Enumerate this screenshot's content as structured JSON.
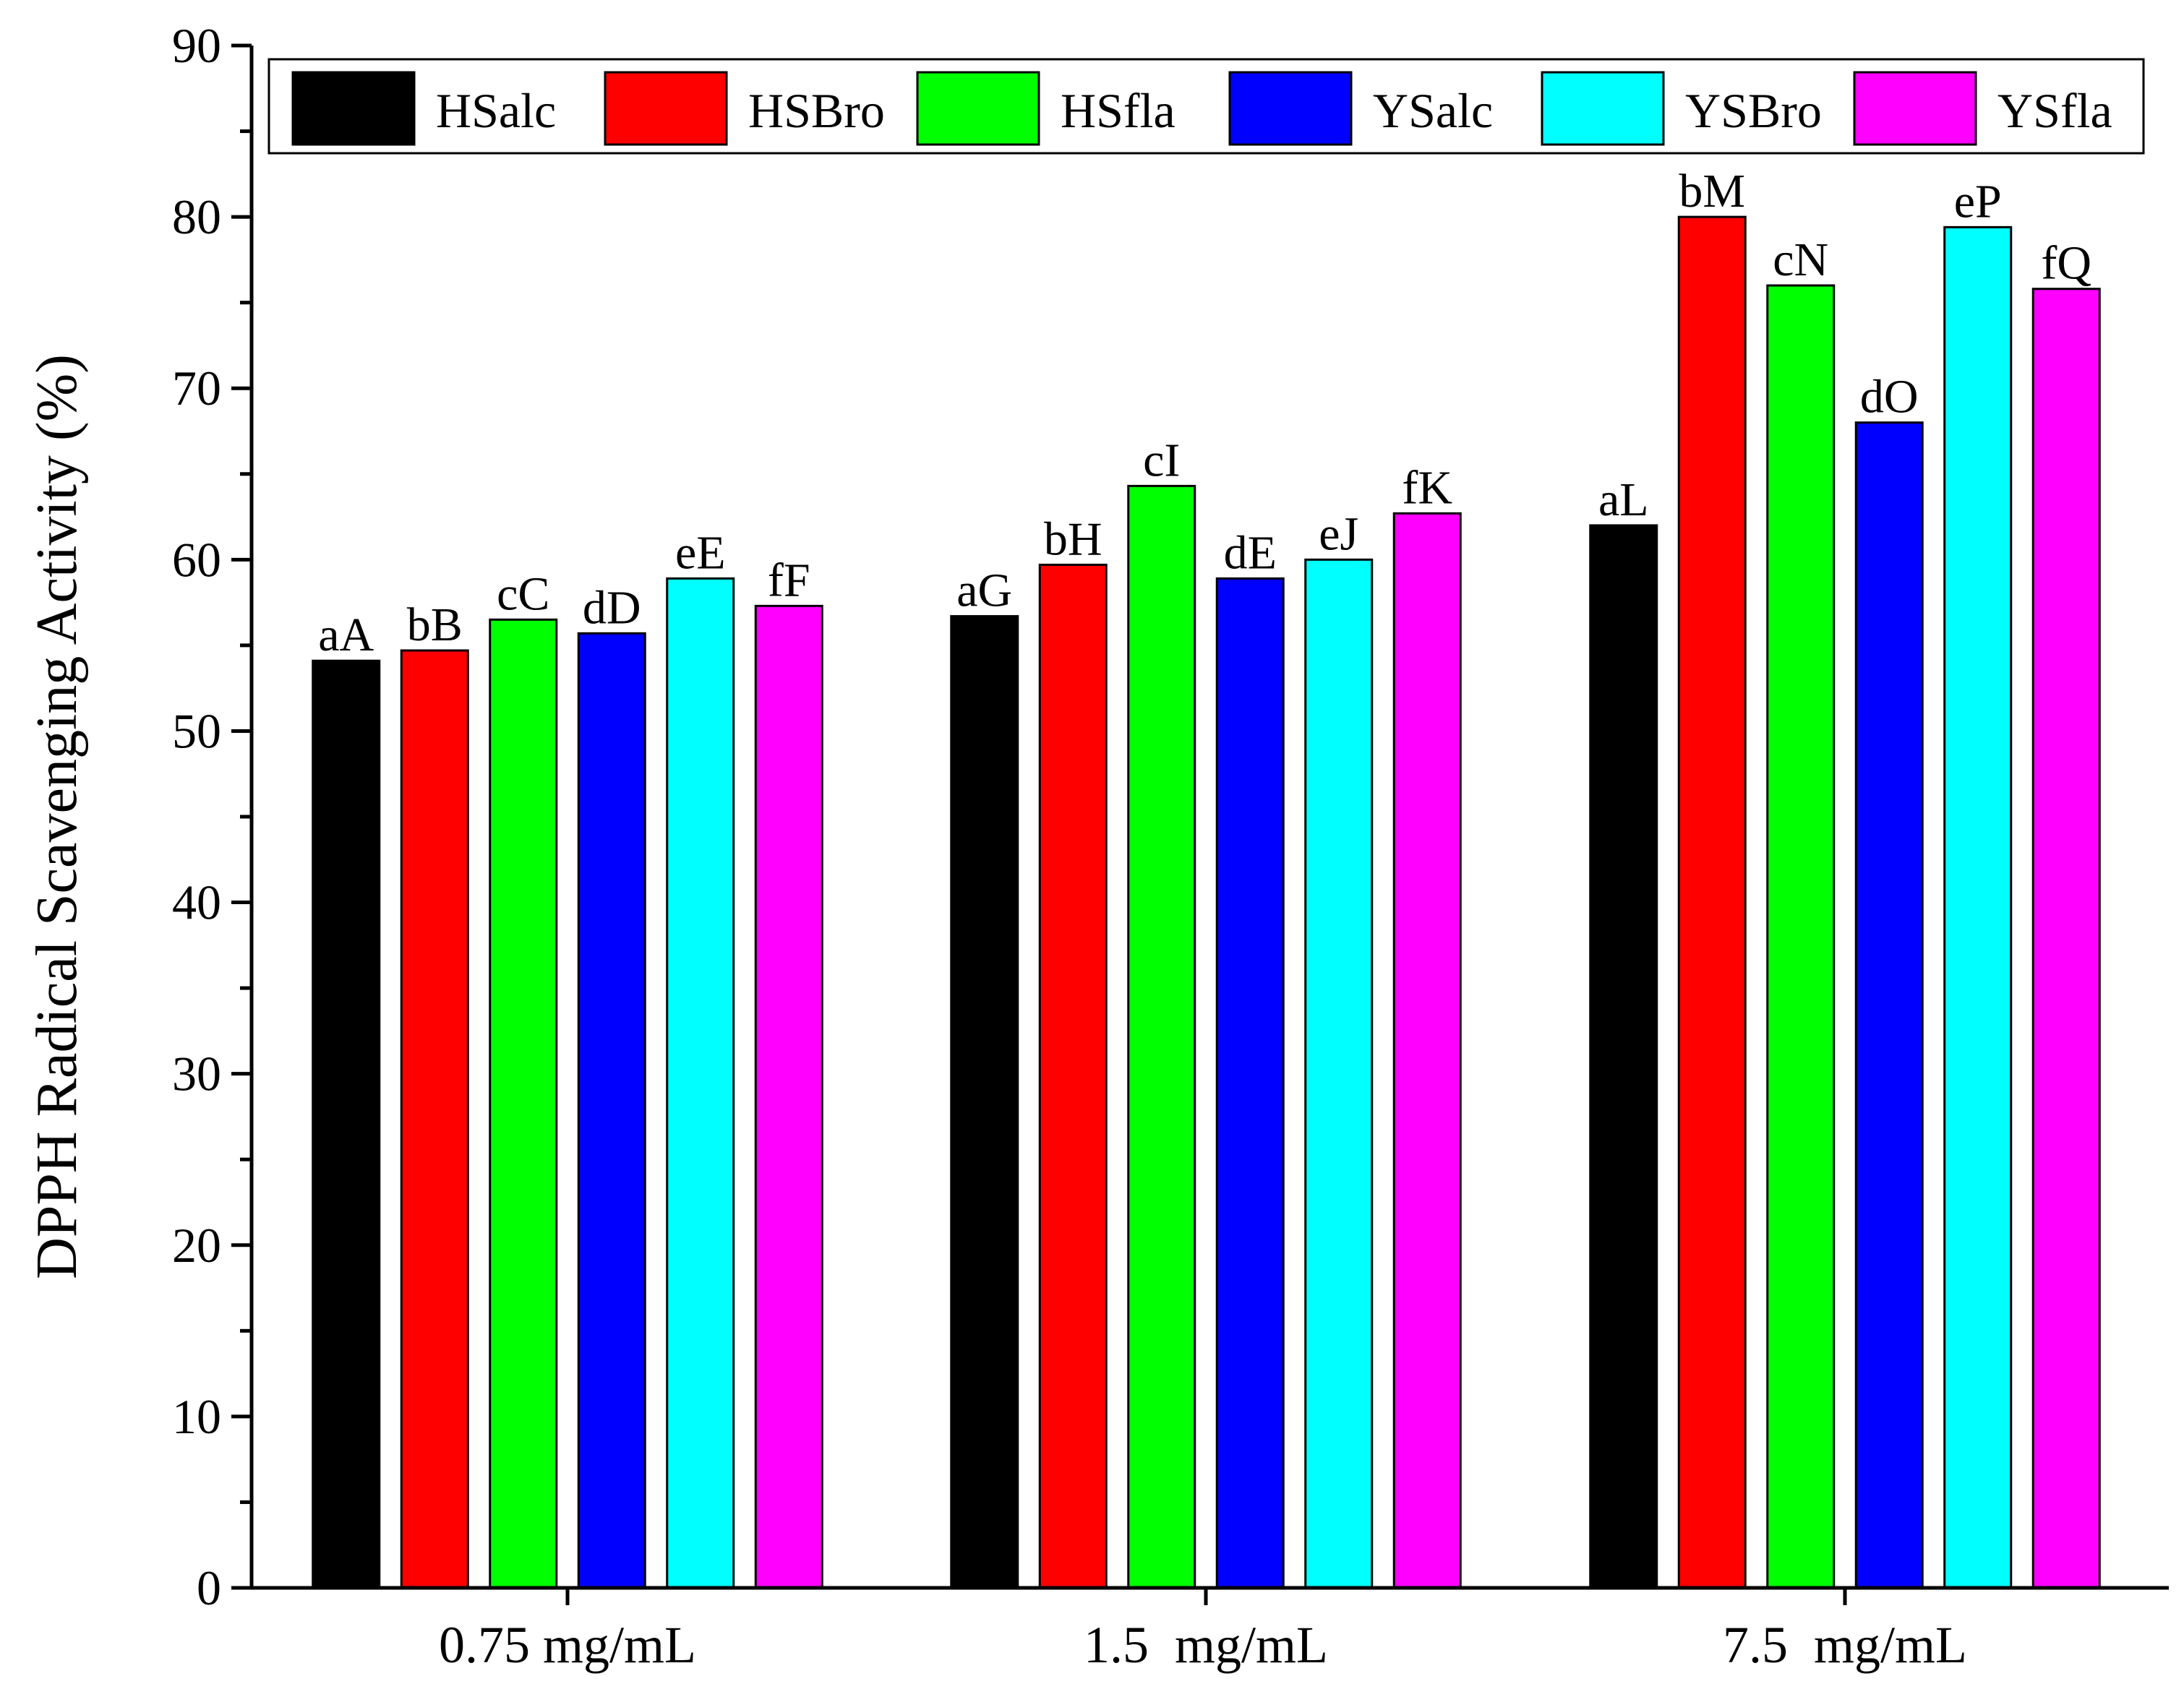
{
  "chart_data": {
    "type": "bar",
    "title": "",
    "xlabel": "",
    "ylabel": "DPPH Radical Scavenging Activity (%)",
    "ylim": [
      0,
      90
    ],
    "yticks": [
      "0",
      "10",
      "20",
      "30",
      "40",
      "50",
      "60",
      "70",
      "80",
      "90"
    ],
    "grid": false,
    "legend_position": "top",
    "categories": [
      "0.75 mg/mL",
      "1.5  mg/mL",
      "7.5  mg/mL"
    ],
    "series": [
      {
        "name": "HSalc",
        "color": "#000000",
        "values": [
          54.1,
          56.7,
          62.0
        ],
        "labels": [
          "aA",
          "aG",
          "aL"
        ]
      },
      {
        "name": "HSBro",
        "color": "#ff0000",
        "values": [
          54.7,
          59.7,
          80.0
        ],
        "labels": [
          "bB",
          "bH",
          "bM"
        ]
      },
      {
        "name": "HSfla",
        "color": "#00ff00",
        "values": [
          56.5,
          64.3,
          76.0
        ],
        "labels": [
          "cC",
          "cI",
          "cN"
        ]
      },
      {
        "name": "YSalc",
        "color": "#0000ff",
        "values": [
          55.7,
          58.9,
          68.0
        ],
        "labels": [
          "dD",
          "dE",
          "dO"
        ]
      },
      {
        "name": "YSBro",
        "color": "#00ffff",
        "values": [
          58.9,
          60.0,
          79.4
        ],
        "labels": [
          "eE",
          "eJ",
          "eP"
        ]
      },
      {
        "name": "YSfla",
        "color": "#ff00ff",
        "values": [
          57.3,
          62.7,
          75.8
        ],
        "labels": [
          "fF",
          "fK",
          "fQ"
        ]
      }
    ]
  }
}
